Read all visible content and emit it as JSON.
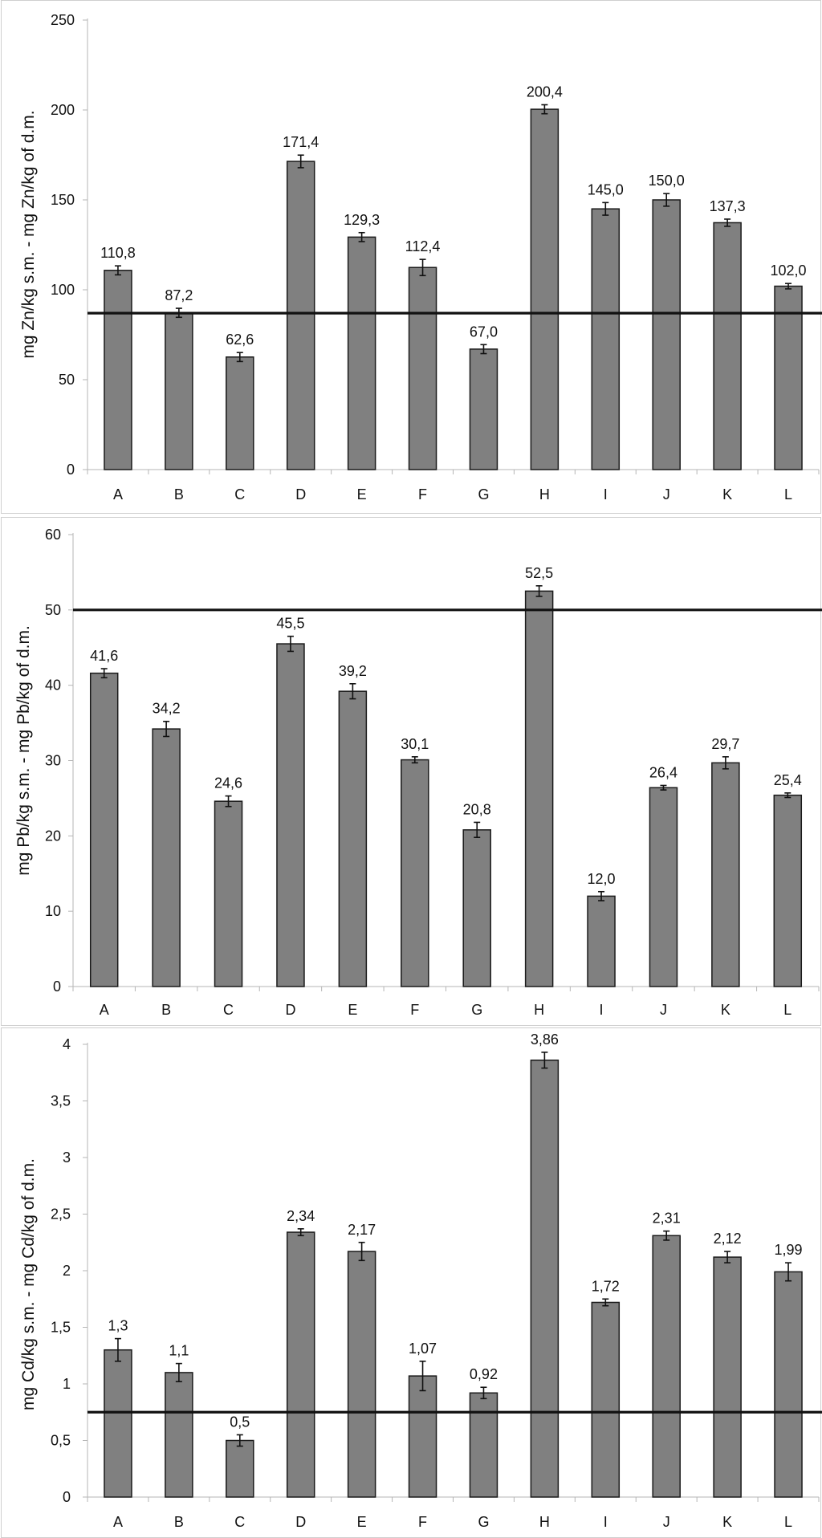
{
  "chart_data": [
    {
      "type": "bar",
      "categories": [
        "A",
        "B",
        "C",
        "D",
        "E",
        "F",
        "G",
        "H",
        "I",
        "J",
        "K",
        "L"
      ],
      "values": [
        110.8,
        87.2,
        62.6,
        171.4,
        129.3,
        112.4,
        67.0,
        200.4,
        145.0,
        150.0,
        137.3,
        102.0
      ],
      "errors": [
        2.5,
        2.5,
        2.5,
        3.5,
        2.5,
        4.5,
        2.5,
        2.5,
        3.5,
        3.5,
        2,
        1.5
      ],
      "value_labels": [
        "110,8",
        "87,2",
        "62,6",
        "171,4",
        "129,3",
        "112,4",
        "67,0",
        "200,4",
        "145,0",
        "150,0",
        "137,3",
        "102,0"
      ],
      "reference_line": 87,
      "ylabel": "mg Zn/kg s.m. - mg Zn/kg of d.m.",
      "ylim": [
        0,
        250
      ],
      "yticks": [
        0,
        50,
        100,
        150,
        200,
        250
      ],
      "ytick_labels": [
        "0",
        "50",
        "100",
        "150",
        "200",
        "250"
      ],
      "bar_color": "#808080",
      "grid": false
    },
    {
      "type": "bar",
      "categories": [
        "A",
        "B",
        "C",
        "D",
        "E",
        "F",
        "G",
        "H",
        "I",
        "J",
        "K",
        "L"
      ],
      "values": [
        41.6,
        34.2,
        24.6,
        45.5,
        39.2,
        30.1,
        20.8,
        52.5,
        12.0,
        26.4,
        29.7,
        25.4
      ],
      "errors": [
        0.6,
        1.0,
        0.7,
        1.0,
        1.0,
        0.4,
        1.0,
        0.7,
        0.6,
        0.3,
        0.8,
        0.3
      ],
      "value_labels": [
        "41,6",
        "34,2",
        "24,6",
        "45,5",
        "39,2",
        "30,1",
        "20,8",
        "52,5",
        "12,0",
        "26,4",
        "29,7",
        "25,4"
      ],
      "reference_line": 50,
      "ylabel": "mg Pb/kg s.m. - mg Pb/kg of d.m.",
      "ylim": [
        0,
        60
      ],
      "yticks": [
        0,
        10,
        20,
        30,
        40,
        50,
        60
      ],
      "ytick_labels": [
        "0",
        "10",
        "20",
        "30",
        "40",
        "50",
        "60"
      ],
      "bar_color": "#808080",
      "grid": false
    },
    {
      "type": "bar",
      "categories": [
        "A",
        "B",
        "C",
        "D",
        "E",
        "F",
        "G",
        "H",
        "I",
        "J",
        "K",
        "L"
      ],
      "values": [
        1.3,
        1.1,
        0.5,
        2.34,
        2.17,
        1.07,
        0.92,
        3.86,
        1.72,
        2.31,
        2.12,
        1.99
      ],
      "errors": [
        0.1,
        0.08,
        0.05,
        0.03,
        0.08,
        0.13,
        0.05,
        0.07,
        0.03,
        0.04,
        0.05,
        0.08
      ],
      "value_labels": [
        "1,3",
        "1,1",
        "0,5",
        "2,34",
        "2,17",
        "1,07",
        "0,92",
        "3,86",
        "1,72",
        "2,31",
        "2,12",
        "1,99"
      ],
      "reference_line": 0.75,
      "ylabel": "mg Cd/kg s.m. - mg Cd/kg of d.m.",
      "ylim": [
        0,
        4
      ],
      "yticks": [
        0,
        0.5,
        1,
        1.5,
        2,
        2.5,
        3,
        3.5,
        4
      ],
      "ytick_labels": [
        "0",
        "0,5",
        "1",
        "1,5",
        "2",
        "2,5",
        "3",
        "3,5",
        "4"
      ],
      "bar_color": "#808080",
      "grid": false
    }
  ]
}
